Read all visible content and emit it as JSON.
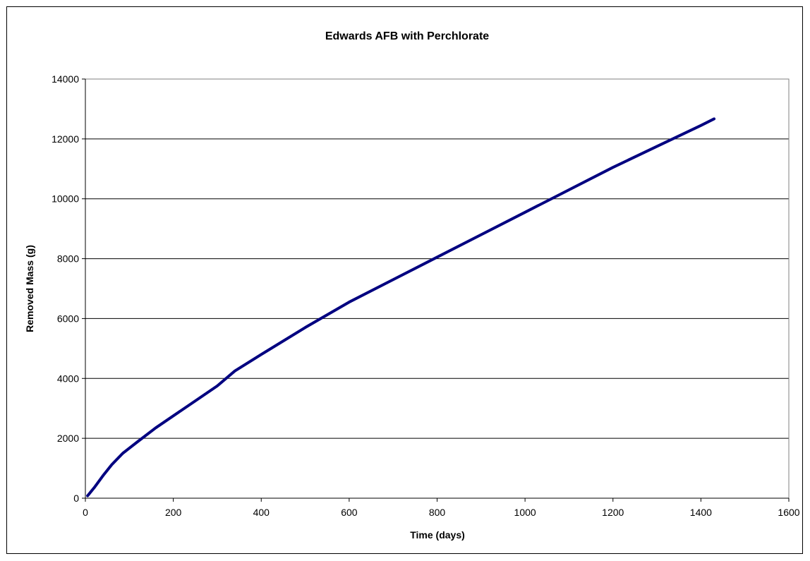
{
  "chart_data": {
    "type": "line",
    "title": "Edwards AFB with Perchlorate",
    "xlabel": "Time (days)",
    "ylabel": "Removed Mass (g)",
    "xlim": [
      0,
      1600
    ],
    "ylim": [
      0,
      14000
    ],
    "xticks": [
      0,
      200,
      400,
      600,
      800,
      1000,
      1200,
      1400,
      1600
    ],
    "yticks": [
      0,
      2000,
      4000,
      6000,
      8000,
      10000,
      12000,
      14000
    ],
    "grid": "horizontal",
    "legend": "none",
    "series": [
      {
        "color": "#000080",
        "x": [
          5,
          20,
          40,
          60,
          85,
          120,
          160,
          200,
          250,
          300,
          340,
          400,
          500,
          600,
          700,
          800,
          900,
          1000,
          1100,
          1200,
          1300,
          1400,
          1430
        ],
        "y": [
          80,
          350,
          750,
          1120,
          1500,
          1900,
          2350,
          2750,
          3250,
          3750,
          4250,
          4800,
          5700,
          6550,
          7300,
          8050,
          8800,
          9550,
          10300,
          11050,
          11750,
          12450,
          12670
        ]
      }
    ]
  }
}
